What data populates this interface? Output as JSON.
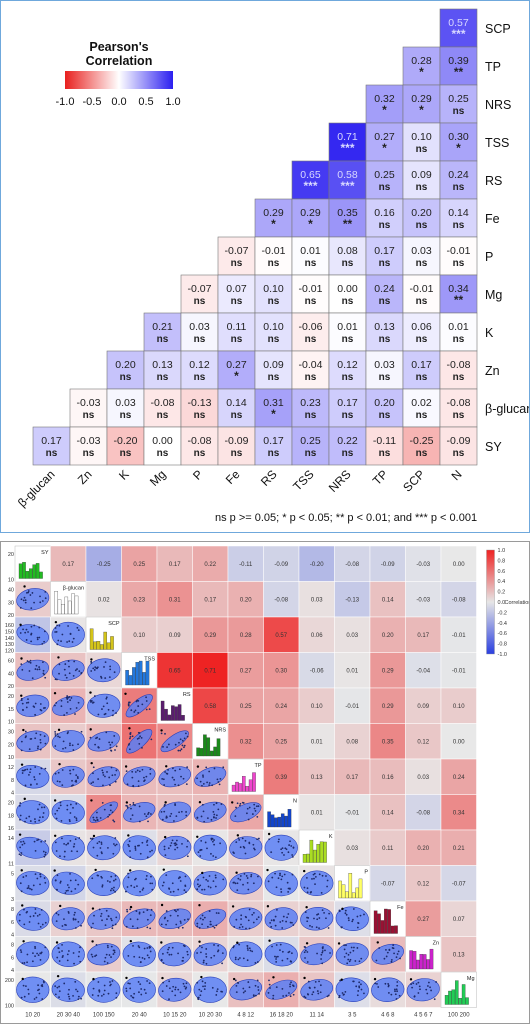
{
  "chart_data": [
    {
      "type": "heatmap",
      "title": "",
      "legend_title": "Pearson's Correlation",
      "legend_ticks": [
        "-1.0",
        "-0.5",
        "0.0",
        "0.5",
        "1.0"
      ],
      "legend_placement": "top-left",
      "row_labels": [
        "SCP",
        "TP",
        "NRS",
        "TSS",
        "RS",
        "Fe",
        "P",
        "Mg",
        "K",
        "Zn",
        "β-glucan",
        "SY"
      ],
      "col_labels": [
        "β-glucan",
        "Zn",
        "K",
        "Mg",
        "P",
        "Fe",
        "RS",
        "TSS",
        "NRS",
        "TP",
        "SCP",
        "N"
      ],
      "cells": [
        [
          [
            0.57,
            "***"
          ]
        ],
        [
          [
            0.28,
            "*"
          ],
          [
            0.39,
            "**"
          ]
        ],
        [
          [
            0.32,
            "*"
          ],
          [
            0.29,
            "*"
          ],
          [
            0.25,
            "ns"
          ]
        ],
        [
          [
            0.71,
            "***"
          ],
          [
            0.27,
            "*"
          ],
          [
            0.1,
            "ns"
          ],
          [
            0.3,
            "*"
          ]
        ],
        [
          [
            0.65,
            "***"
          ],
          [
            0.58,
            "***"
          ],
          [
            0.25,
            "ns"
          ],
          [
            0.09,
            "ns"
          ],
          [
            0.24,
            "ns"
          ]
        ],
        [
          [
            0.29,
            "*"
          ],
          [
            0.29,
            "*"
          ],
          [
            0.35,
            "**"
          ],
          [
            0.16,
            "ns"
          ],
          [
            0.2,
            "ns"
          ],
          [
            0.14,
            "ns"
          ]
        ],
        [
          [
            -0.07,
            "ns"
          ],
          [
            -0.01,
            "ns"
          ],
          [
            0.01,
            "ns"
          ],
          [
            0.08,
            "ns"
          ],
          [
            0.17,
            "ns"
          ],
          [
            0.03,
            "ns"
          ],
          [
            -0.01,
            "ns"
          ]
        ],
        [
          [
            -0.07,
            "ns"
          ],
          [
            0.07,
            "ns"
          ],
          [
            0.1,
            "ns"
          ],
          [
            -0.01,
            "ns"
          ],
          [
            0.0,
            "ns"
          ],
          [
            0.24,
            "ns"
          ],
          [
            -0.01,
            "ns"
          ],
          [
            0.34,
            "**"
          ]
        ],
        [
          [
            0.21,
            "ns"
          ],
          [
            0.03,
            "ns"
          ],
          [
            0.11,
            "ns"
          ],
          [
            0.1,
            "ns"
          ],
          [
            -0.06,
            "ns"
          ],
          [
            0.01,
            "ns"
          ],
          [
            0.13,
            "ns"
          ],
          [
            0.06,
            "ns"
          ],
          [
            0.01,
            "ns"
          ]
        ],
        [
          [
            0.2,
            "ns"
          ],
          [
            0.13,
            "ns"
          ],
          [
            0.12,
            "ns"
          ],
          [
            0.27,
            "*"
          ],
          [
            0.09,
            "ns"
          ],
          [
            -0.04,
            "ns"
          ],
          [
            0.12,
            "ns"
          ],
          [
            0.03,
            "ns"
          ],
          [
            0.17,
            "ns"
          ],
          [
            -0.08,
            "ns"
          ]
        ],
        [
          [
            -0.03,
            "ns"
          ],
          [
            0.03,
            "ns"
          ],
          [
            -0.08,
            "ns"
          ],
          [
            -0.13,
            "ns"
          ],
          [
            0.14,
            "ns"
          ],
          [
            0.31,
            "*"
          ],
          [
            0.23,
            "ns"
          ],
          [
            0.17,
            "ns"
          ],
          [
            0.2,
            "ns"
          ],
          [
            0.02,
            "ns"
          ],
          [
            -0.08,
            "ns"
          ]
        ],
        [
          [
            0.17,
            "ns"
          ],
          [
            -0.03,
            "ns"
          ],
          [
            -0.2,
            "ns"
          ],
          [
            0.0,
            "ns"
          ],
          [
            -0.08,
            "ns"
          ],
          [
            -0.09,
            "ns"
          ],
          [
            0.17,
            "ns"
          ],
          [
            0.25,
            "ns"
          ],
          [
            0.22,
            "ns"
          ],
          [
            -0.11,
            "ns"
          ],
          [
            -0.25,
            "ns"
          ],
          [
            -0.09,
            "ns"
          ]
        ]
      ],
      "footnote": "ns p >= 0.05; * p < 0.05; ** p < 0.01; and *** p < 0.001",
      "colors": {
        "negative": "#e8201e",
        "neutral": "#ffffff",
        "positive": "#2b1ff0"
      }
    },
    {
      "type": "scatter",
      "subtype": "scatterplot-matrix",
      "variables": [
        "SY",
        "β-glucan",
        "SCP",
        "TSS",
        "RS",
        "NRS",
        "TP",
        "N",
        "K",
        "P",
        "Fe",
        "Zn",
        "Mg"
      ],
      "histogram_colors": [
        "#22bb22",
        "#ffffff",
        "#d4c41a",
        "#2277dd",
        "#5a1d6e",
        "#1a8a1a",
        "#ee44cc",
        "#1144cc",
        "#aadd22",
        "#ffff66",
        "#991133",
        "#cc22cc",
        "#22cc55"
      ],
      "upper_triangle": [
        [
          0.17,
          -0.25,
          0.25,
          0.17,
          0.22,
          -0.11,
          -0.09,
          -0.2,
          -0.08,
          -0.09,
          -0.03,
          -0.0
        ],
        [
          0.02,
          0.23,
          0.31,
          0.17,
          0.2,
          -0.08,
          0.03,
          -0.13,
          0.14,
          -0.03,
          -0.08
        ],
        [
          0.1,
          0.09,
          0.29,
          0.28,
          0.57,
          0.06,
          0.03,
          0.2,
          0.17,
          -0.01
        ],
        [
          0.65,
          0.71,
          0.27,
          0.3,
          -0.06,
          0.01,
          0.29,
          -0.04,
          -0.01
        ],
        [
          0.58,
          0.25,
          0.24,
          0.1,
          -0.01,
          0.29,
          0.09,
          0.1
        ],
        [
          0.32,
          0.25,
          0.01,
          0.08,
          0.35,
          0.12,
          0.0
        ],
        [
          0.39,
          0.13,
          0.17,
          0.16,
          0.03,
          0.24
        ],
        [
          0.01,
          -0.01,
          0.14,
          -0.08,
          0.34
        ],
        [
          0.03,
          0.11,
          0.2,
          0.21
        ],
        [
          -0.07,
          0.12,
          -0.07
        ],
        [
          0.27,
          0.07
        ],
        [
          0.13
        ]
      ],
      "diag_text": [
        "SY",
        "β-glucan",
        "SCP",
        "TSS",
        "RS",
        "NRS",
        "TP",
        "N",
        "K",
        "P",
        "Fe",
        "Zn",
        "Mg"
      ],
      "x_tick_labels": [
        "10 20",
        "20 30 40",
        "100 150",
        "20 40",
        "10 15 20",
        "10 20 30",
        "4 8 12",
        "16 18 20",
        "11 14",
        "3 5",
        "4 6 8",
        "4 5 6 7",
        "100 200"
      ],
      "y_tick_labels": [
        [
          "20",
          "10"
        ],
        [
          "40",
          "30",
          "20"
        ],
        [
          "160",
          "150",
          "140",
          "130",
          "120"
        ],
        [
          "60",
          "40",
          "20"
        ],
        [
          "20",
          "15",
          "10"
        ],
        [
          "30",
          "20",
          "10"
        ],
        [
          "12",
          "8",
          "4"
        ],
        [
          "20",
          "18",
          "16"
        ],
        [
          "14",
          "11"
        ],
        [
          "5",
          "3"
        ],
        [
          "8",
          "6",
          "4"
        ],
        [
          "8",
          "6",
          "4"
        ],
        [
          "200",
          "100"
        ]
      ],
      "legend_title": "Correlation",
      "legend_ticks": [
        "1.0",
        "0.8",
        "0.6",
        "0.4",
        "0.2",
        "0.0",
        "-0.2",
        "-0.4",
        "-0.6",
        "-0.8",
        "-1.0"
      ],
      "legend_placement": "top-right",
      "colors": {
        "positive": "#ee2222",
        "neutral": "#e6e6e6",
        "negative": "#2a3fe0",
        "ellipse": "#5b7ff5",
        "ellipse_edge": "#2b40b8",
        "point": "#1d2a6a",
        "outlier": "#000000"
      }
    }
  ]
}
